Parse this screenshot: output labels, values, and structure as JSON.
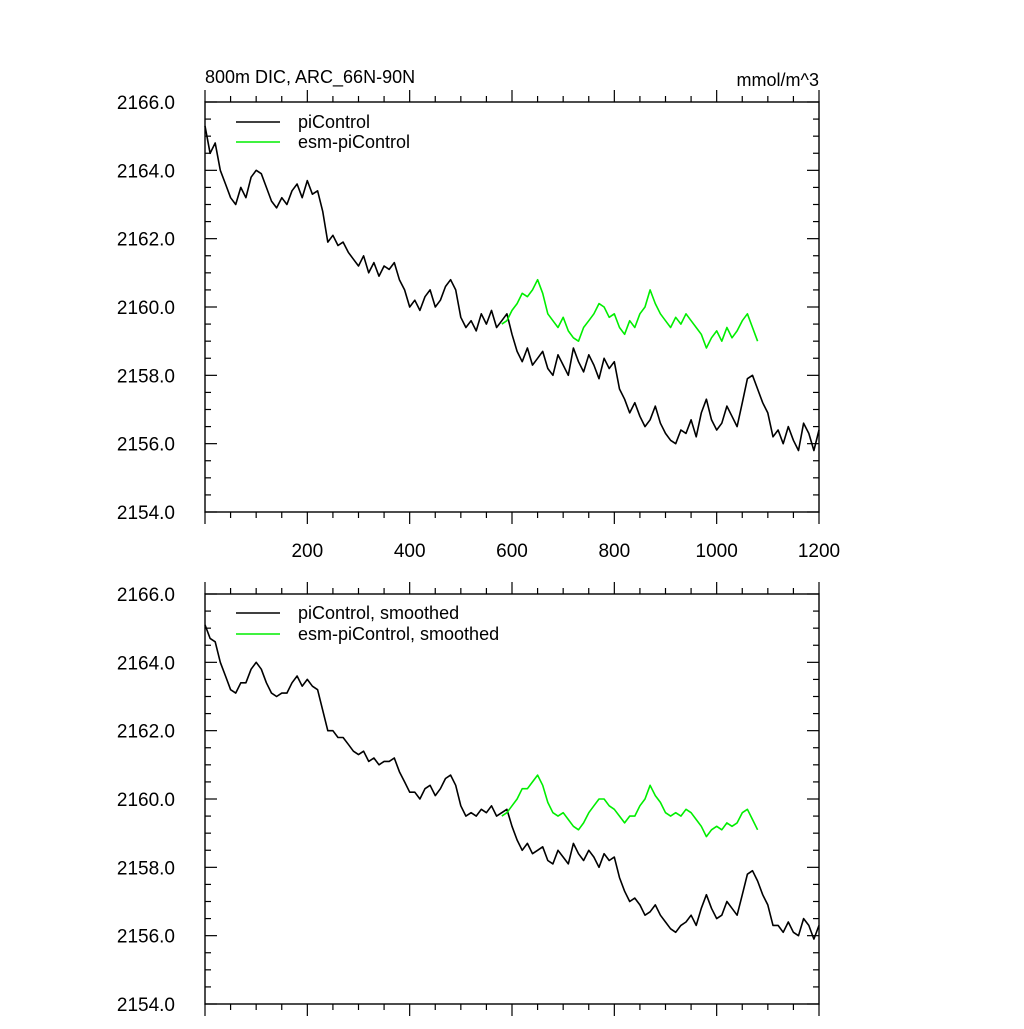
{
  "chart_data": [
    {
      "type": "line",
      "title": "800m DIC, ARC_66N-90N",
      "units": "mmol/m^3",
      "xlim": [
        0,
        1200
      ],
      "ylim": [
        2154,
        2166
      ],
      "xticks": [
        200,
        400,
        600,
        800,
        1000,
        1200
      ],
      "xtick_labels": [
        "200",
        "400",
        "600",
        "800",
        "1000",
        "1200"
      ],
      "yticks": [
        2154,
        2156,
        2158,
        2160,
        2162,
        2164,
        2166
      ],
      "ytick_labels": [
        "2154.0",
        "2156.0",
        "2158.0",
        "2160.0",
        "2162.0",
        "2164.0",
        "2166.0"
      ],
      "legend_position": "top-left",
      "series": [
        {
          "name": "piControl",
          "color": "#000000",
          "x": [
            0,
            10,
            20,
            30,
            40,
            50,
            60,
            70,
            80,
            90,
            100,
            110,
            120,
            130,
            140,
            150,
            160,
            170,
            180,
            190,
            200,
            210,
            220,
            230,
            240,
            250,
            260,
            270,
            280,
            290,
            300,
            310,
            320,
            330,
            340,
            350,
            360,
            370,
            380,
            390,
            400,
            410,
            420,
            430,
            440,
            450,
            460,
            470,
            480,
            490,
            500,
            510,
            520,
            530,
            540,
            550,
            560,
            570,
            580,
            590,
            600,
            610,
            620,
            630,
            640,
            650,
            660,
            670,
            680,
            690,
            700,
            710,
            720,
            730,
            740,
            750,
            760,
            770,
            780,
            790,
            800,
            810,
            820,
            830,
            840,
            850,
            860,
            870,
            880,
            890,
            900,
            910,
            920,
            930,
            940,
            950,
            960,
            970,
            980,
            990,
            1000,
            1010,
            1020,
            1030,
            1040,
            1050,
            1060,
            1070,
            1080,
            1090,
            1100,
            1110,
            1120,
            1130,
            1140,
            1150,
            1160,
            1170,
            1180,
            1190,
            1200
          ],
          "values": [
            2165.3,
            2164.5,
            2164.8,
            2164.0,
            2163.6,
            2163.2,
            2163.0,
            2163.5,
            2163.2,
            2163.8,
            2164.0,
            2163.9,
            2163.5,
            2163.1,
            2162.9,
            2163.2,
            2163.0,
            2163.4,
            2163.6,
            2163.2,
            2163.7,
            2163.3,
            2163.4,
            2162.8,
            2161.9,
            2162.1,
            2161.8,
            2161.9,
            2161.6,
            2161.4,
            2161.2,
            2161.5,
            2161.0,
            2161.3,
            2160.9,
            2161.2,
            2161.1,
            2161.3,
            2160.8,
            2160.5,
            2160.0,
            2160.2,
            2159.9,
            2160.3,
            2160.5,
            2160.0,
            2160.2,
            2160.6,
            2160.8,
            2160.5,
            2159.7,
            2159.4,
            2159.6,
            2159.3,
            2159.8,
            2159.5,
            2159.9,
            2159.4,
            2159.6,
            2159.8,
            2159.2,
            2158.7,
            2158.4,
            2158.8,
            2158.3,
            2158.5,
            2158.7,
            2158.2,
            2158.0,
            2158.6,
            2158.3,
            2158.0,
            2158.8,
            2158.4,
            2158.1,
            2158.6,
            2158.3,
            2157.9,
            2158.5,
            2158.2,
            2158.4,
            2157.6,
            2157.3,
            2156.9,
            2157.2,
            2156.8,
            2156.5,
            2156.7,
            2157.1,
            2156.6,
            2156.3,
            2156.1,
            2156.0,
            2156.4,
            2156.3,
            2156.7,
            2156.2,
            2156.9,
            2157.3,
            2156.7,
            2156.4,
            2156.6,
            2157.1,
            2156.8,
            2156.5,
            2157.2,
            2157.9,
            2158.0,
            2157.6,
            2157.2,
            2156.9,
            2156.2,
            2156.4,
            2156.0,
            2156.5,
            2156.1,
            2155.8,
            2156.6,
            2156.3,
            2155.8,
            2156.4
          ]
        },
        {
          "name": "esm-piControl",
          "color": "#00ee00",
          "x": [
            580,
            590,
            600,
            610,
            620,
            630,
            640,
            650,
            660,
            670,
            680,
            690,
            700,
            710,
            720,
            730,
            740,
            750,
            760,
            770,
            780,
            790,
            800,
            810,
            820,
            830,
            840,
            850,
            860,
            870,
            880,
            890,
            900,
            910,
            920,
            930,
            940,
            950,
            960,
            970,
            980,
            990,
            1000,
            1010,
            1020,
            1030,
            1040,
            1050,
            1060,
            1070,
            1080
          ],
          "values": [
            2159.5,
            2159.6,
            2159.9,
            2160.1,
            2160.4,
            2160.3,
            2160.5,
            2160.8,
            2160.4,
            2159.8,
            2159.6,
            2159.4,
            2159.7,
            2159.3,
            2159.1,
            2159.0,
            2159.4,
            2159.6,
            2159.8,
            2160.1,
            2160.0,
            2159.7,
            2159.8,
            2159.4,
            2159.2,
            2159.6,
            2159.4,
            2159.8,
            2160.0,
            2160.5,
            2160.1,
            2159.8,
            2159.6,
            2159.4,
            2159.7,
            2159.5,
            2159.8,
            2159.6,
            2159.4,
            2159.2,
            2158.8,
            2159.1,
            2159.3,
            2159.0,
            2159.4,
            2159.1,
            2159.3,
            2159.6,
            2159.8,
            2159.4,
            2159.0
          ]
        }
      ]
    },
    {
      "type": "line",
      "title": "",
      "xlim": [
        0,
        1200
      ],
      "ylim": [
        2154,
        2166
      ],
      "yticks": [
        2154,
        2156,
        2158,
        2160,
        2162,
        2164,
        2166
      ],
      "ytick_labels": [
        "2154.0",
        "2156.0",
        "2158.0",
        "2160.0",
        "2162.0",
        "2164.0",
        "2166.0"
      ],
      "legend_position": "top-left",
      "series": [
        {
          "name": "piControl, smoothed",
          "color": "#000000",
          "x": [
            0,
            10,
            20,
            30,
            40,
            50,
            60,
            70,
            80,
            90,
            100,
            110,
            120,
            130,
            140,
            150,
            160,
            170,
            180,
            190,
            200,
            210,
            220,
            230,
            240,
            250,
            260,
            270,
            280,
            290,
            300,
            310,
            320,
            330,
            340,
            350,
            360,
            370,
            380,
            390,
            400,
            410,
            420,
            430,
            440,
            450,
            460,
            470,
            480,
            490,
            500,
            510,
            520,
            530,
            540,
            550,
            560,
            570,
            580,
            590,
            600,
            610,
            620,
            630,
            640,
            650,
            660,
            670,
            680,
            690,
            700,
            710,
            720,
            730,
            740,
            750,
            760,
            770,
            780,
            790,
            800,
            810,
            820,
            830,
            840,
            850,
            860,
            870,
            880,
            890,
            900,
            910,
            920,
            930,
            940,
            950,
            960,
            970,
            980,
            990,
            1000,
            1010,
            1020,
            1030,
            1040,
            1050,
            1060,
            1070,
            1080,
            1090,
            1100,
            1110,
            1120,
            1130,
            1140,
            1150,
            1160,
            1170,
            1180,
            1190,
            1200
          ],
          "values": [
            2165.1,
            2164.7,
            2164.6,
            2164.0,
            2163.6,
            2163.2,
            2163.1,
            2163.4,
            2163.4,
            2163.8,
            2164.0,
            2163.8,
            2163.4,
            2163.1,
            2163.0,
            2163.1,
            2163.1,
            2163.4,
            2163.6,
            2163.3,
            2163.5,
            2163.3,
            2163.2,
            2162.6,
            2162.0,
            2162.0,
            2161.8,
            2161.8,
            2161.6,
            2161.4,
            2161.3,
            2161.4,
            2161.1,
            2161.2,
            2161.0,
            2161.1,
            2161.1,
            2161.2,
            2160.8,
            2160.5,
            2160.2,
            2160.2,
            2160.0,
            2160.3,
            2160.4,
            2160.1,
            2160.3,
            2160.6,
            2160.7,
            2160.4,
            2159.8,
            2159.5,
            2159.6,
            2159.5,
            2159.7,
            2159.6,
            2159.8,
            2159.5,
            2159.6,
            2159.7,
            2159.2,
            2158.8,
            2158.5,
            2158.7,
            2158.4,
            2158.5,
            2158.6,
            2158.2,
            2158.1,
            2158.5,
            2158.3,
            2158.1,
            2158.7,
            2158.4,
            2158.2,
            2158.5,
            2158.3,
            2158.0,
            2158.4,
            2158.2,
            2158.3,
            2157.7,
            2157.3,
            2157.0,
            2157.1,
            2156.9,
            2156.6,
            2156.7,
            2156.9,
            2156.6,
            2156.4,
            2156.2,
            2156.1,
            2156.3,
            2156.4,
            2156.6,
            2156.3,
            2156.8,
            2157.2,
            2156.8,
            2156.5,
            2156.6,
            2157.0,
            2156.8,
            2156.6,
            2157.2,
            2157.8,
            2157.9,
            2157.6,
            2157.2,
            2156.9,
            2156.3,
            2156.3,
            2156.1,
            2156.4,
            2156.1,
            2156.0,
            2156.5,
            2156.3,
            2155.9,
            2156.3
          ]
        },
        {
          "name": "esm-piControl, smoothed",
          "color": "#00ee00",
          "x": [
            580,
            590,
            600,
            610,
            620,
            630,
            640,
            650,
            660,
            670,
            680,
            690,
            700,
            710,
            720,
            730,
            740,
            750,
            760,
            770,
            780,
            790,
            800,
            810,
            820,
            830,
            840,
            850,
            860,
            870,
            880,
            890,
            900,
            910,
            920,
            930,
            940,
            950,
            960,
            970,
            980,
            990,
            1000,
            1010,
            1020,
            1030,
            1040,
            1050,
            1060,
            1070,
            1080
          ],
          "values": [
            2159.5,
            2159.6,
            2159.8,
            2160.0,
            2160.3,
            2160.3,
            2160.5,
            2160.7,
            2160.4,
            2159.9,
            2159.6,
            2159.5,
            2159.6,
            2159.4,
            2159.2,
            2159.1,
            2159.3,
            2159.6,
            2159.8,
            2160.0,
            2160.0,
            2159.8,
            2159.7,
            2159.5,
            2159.3,
            2159.5,
            2159.5,
            2159.8,
            2160.0,
            2160.4,
            2160.1,
            2159.9,
            2159.6,
            2159.5,
            2159.6,
            2159.5,
            2159.7,
            2159.6,
            2159.4,
            2159.2,
            2158.9,
            2159.1,
            2159.2,
            2159.1,
            2159.3,
            2159.2,
            2159.3,
            2159.6,
            2159.7,
            2159.4,
            2159.1
          ]
        }
      ]
    }
  ]
}
